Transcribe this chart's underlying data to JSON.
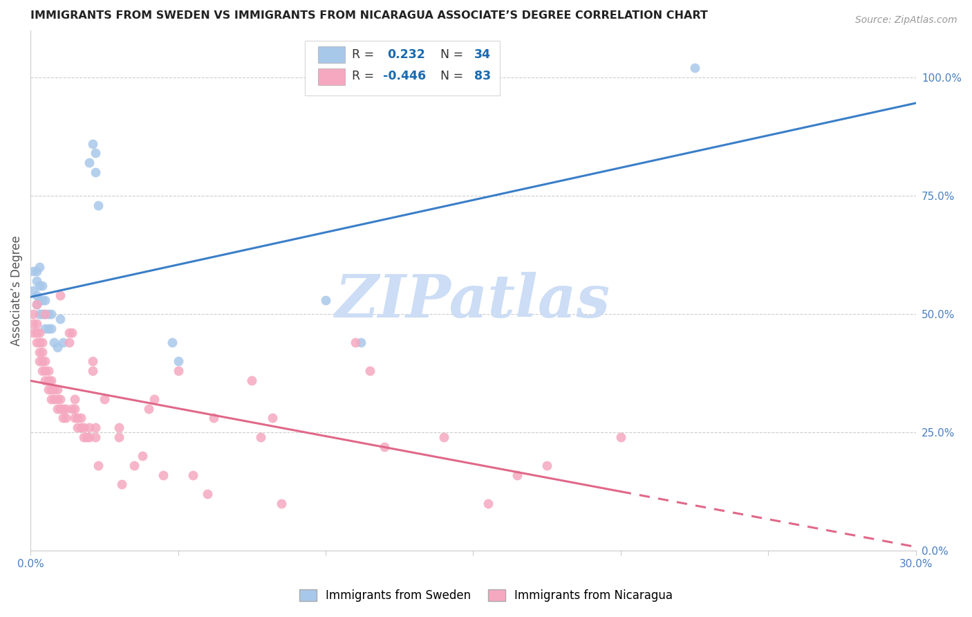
{
  "title": "IMMIGRANTS FROM SWEDEN VS IMMIGRANTS FROM NICARAGUA ASSOCIATE’S DEGREE CORRELATION CHART",
  "source": "Source: ZipAtlas.com",
  "ylabel": "Associate’s Degree",
  "right_ytick_labels": [
    "0.0%",
    "25.0%",
    "50.0%",
    "75.0%",
    "100.0%"
  ],
  "right_ytick_vals": [
    0.0,
    0.25,
    0.5,
    0.75,
    1.0
  ],
  "xmin": 0.0,
  "xmax": 0.3,
  "ymin": 0.0,
  "ymax": 1.1,
  "sweden_R": 0.232,
  "sweden_N": 34,
  "nicaragua_R": -0.446,
  "nicaragua_N": 83,
  "sweden_dot_color": "#a8c8ea",
  "nicaragua_dot_color": "#f5a8c0",
  "sweden_line_color": "#3a7ec8",
  "nicaragua_line_color": "#e06888",
  "watermark_text": "ZIPatlas",
  "watermark_color": "#ccddf5",
  "legend_R_color": "#1a6ab0",
  "legend_N_color": "#1a6ab0",
  "xtick_vals": [
    0.0,
    0.05,
    0.1,
    0.15,
    0.2,
    0.25,
    0.3
  ],
  "xtick_labels_show": [
    "0.0%",
    "",
    "",
    "",
    "",
    "",
    "30.0%"
  ],
  "sweden_x": [
    0.001,
    0.001,
    0.002,
    0.002,
    0.002,
    0.002,
    0.003,
    0.003,
    0.003,
    0.003,
    0.004,
    0.004,
    0.004,
    0.005,
    0.005,
    0.005,
    0.006,
    0.006,
    0.007,
    0.007,
    0.008,
    0.009,
    0.01,
    0.011,
    0.02,
    0.021,
    0.022,
    0.022,
    0.023,
    0.048,
    0.05,
    0.1,
    0.112,
    0.225
  ],
  "sweden_y": [
    0.55,
    0.59,
    0.52,
    0.54,
    0.57,
    0.59,
    0.5,
    0.53,
    0.56,
    0.6,
    0.5,
    0.53,
    0.56,
    0.47,
    0.5,
    0.53,
    0.47,
    0.5,
    0.47,
    0.5,
    0.44,
    0.43,
    0.49,
    0.44,
    0.82,
    0.86,
    0.8,
    0.84,
    0.73,
    0.44,
    0.4,
    0.53,
    0.44,
    1.02
  ],
  "nicaragua_x": [
    0.001,
    0.001,
    0.001,
    0.002,
    0.002,
    0.002,
    0.002,
    0.003,
    0.003,
    0.003,
    0.003,
    0.004,
    0.004,
    0.004,
    0.004,
    0.005,
    0.005,
    0.005,
    0.005,
    0.006,
    0.006,
    0.006,
    0.007,
    0.007,
    0.007,
    0.008,
    0.008,
    0.009,
    0.009,
    0.009,
    0.01,
    0.01,
    0.01,
    0.011,
    0.011,
    0.012,
    0.012,
    0.013,
    0.013,
    0.014,
    0.014,
    0.015,
    0.015,
    0.015,
    0.016,
    0.016,
    0.017,
    0.017,
    0.018,
    0.018,
    0.019,
    0.02,
    0.02,
    0.021,
    0.021,
    0.022,
    0.022,
    0.023,
    0.025,
    0.03,
    0.03,
    0.031,
    0.035,
    0.038,
    0.04,
    0.042,
    0.045,
    0.05,
    0.055,
    0.06,
    0.062,
    0.075,
    0.078,
    0.082,
    0.085,
    0.11,
    0.115,
    0.12,
    0.14,
    0.155,
    0.165,
    0.175,
    0.2
  ],
  "nicaragua_y": [
    0.46,
    0.48,
    0.5,
    0.44,
    0.46,
    0.48,
    0.52,
    0.4,
    0.42,
    0.44,
    0.46,
    0.38,
    0.4,
    0.42,
    0.44,
    0.36,
    0.38,
    0.4,
    0.5,
    0.34,
    0.36,
    0.38,
    0.32,
    0.34,
    0.36,
    0.32,
    0.34,
    0.3,
    0.32,
    0.34,
    0.3,
    0.32,
    0.54,
    0.28,
    0.3,
    0.28,
    0.3,
    0.44,
    0.46,
    0.3,
    0.46,
    0.28,
    0.3,
    0.32,
    0.26,
    0.28,
    0.26,
    0.28,
    0.24,
    0.26,
    0.24,
    0.24,
    0.26,
    0.38,
    0.4,
    0.24,
    0.26,
    0.18,
    0.32,
    0.24,
    0.26,
    0.14,
    0.18,
    0.2,
    0.3,
    0.32,
    0.16,
    0.38,
    0.16,
    0.12,
    0.28,
    0.36,
    0.24,
    0.28,
    0.1,
    0.44,
    0.38,
    0.22,
    0.24,
    0.1,
    0.16,
    0.18,
    0.24
  ]
}
